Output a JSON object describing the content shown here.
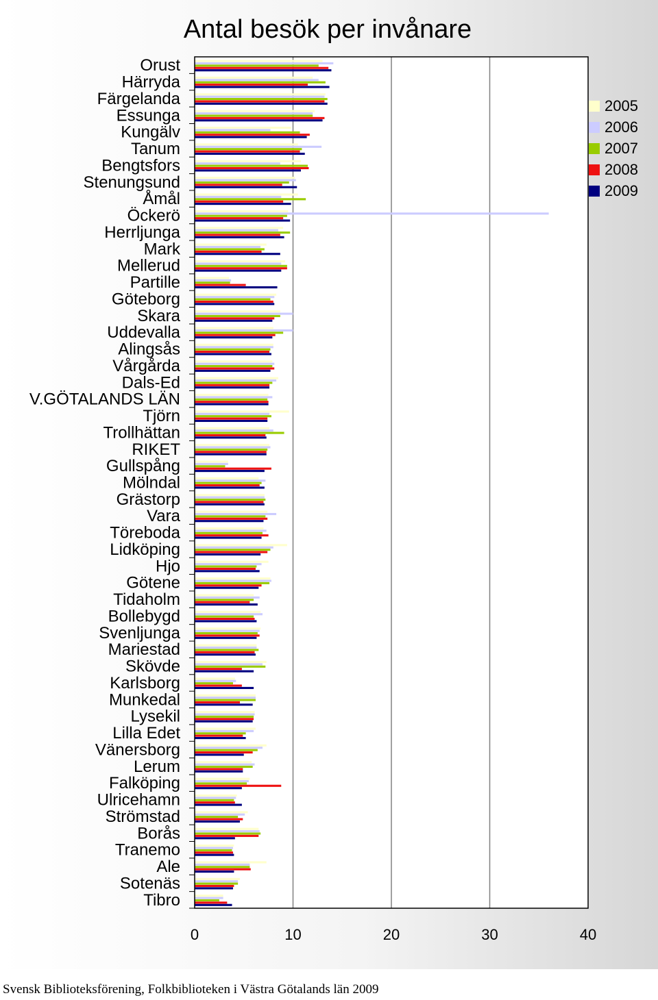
{
  "footer": "Svensk Biblioteksförening, Folkbiblioteken i Västra Götalands län 2009",
  "chart_data": {
    "type": "bar",
    "orientation": "horizontal",
    "title": "Antal besök per invånare",
    "xlim": [
      0,
      40
    ],
    "x_ticks": [
      "0",
      "10",
      "20",
      "30",
      "40"
    ],
    "grid": "vertical",
    "legend_position": "right",
    "categories": [
      "Orust",
      "Härryda",
      "Färgelanda",
      "Essunga",
      "Kungälv",
      "Tanum",
      "Bengtsfors",
      "Stenungsund",
      "Åmål",
      "Öckerö",
      "Herrljunga",
      "Mark",
      "Mellerud",
      "Partille",
      "Göteborg",
      "Skara",
      "Uddevalla",
      "Alingsås",
      "Vårgårda",
      "Dals-Ed",
      "V.GÖTALANDS LÄN",
      "Tjörn",
      "Trollhättan",
      "RIKET",
      "Gullspång",
      "Mölndal",
      "Grästorp",
      "Vara",
      "Töreboda",
      "Lidköping",
      "Hjo",
      "Götene",
      "Tidaholm",
      "Bollebygd",
      "Svenljunga",
      "Mariestad",
      "Skövde",
      "Karlsborg",
      "Munkedal",
      "Lysekil",
      "Lilla Edet",
      "Vänersborg",
      "Lerum",
      "Falköping",
      "Ulricehamn",
      "Strömstad",
      "Borås",
      "Tranemo",
      "Ale",
      "Sotenäs",
      "Tibro"
    ],
    "series": [
      {
        "name": "2005",
        "color": "#ffffcc",
        "values": [
          13.0,
          12.0,
          13.3,
          12.2,
          9.8,
          10.5,
          10.8,
          10.2,
          10.5,
          9.5,
          9.0,
          7.3,
          9.2,
          3.5,
          8.3,
          8.7,
          8.0,
          8.0,
          7.9,
          8.5,
          7.5,
          9.6,
          7.6,
          7.6,
          3.4,
          6.5,
          7.1,
          7.4,
          7.0,
          9.4,
          7.5,
          7.7,
          6.0,
          6.7,
          6.7,
          6.3,
          7.3,
          4.1,
          6.2,
          6.1,
          6.2,
          7.3,
          5.8,
          5.6,
          4.3,
          5.4,
          6.5,
          4.0,
          7.3,
          4.6,
          2.9
        ]
      },
      {
        "name": "2006",
        "color": "#ccccff",
        "values": [
          14.1,
          12.6,
          13.2,
          12.0,
          7.7,
          12.9,
          8.7,
          10.3,
          8.8,
          36.0,
          8.5,
          6.7,
          8.8,
          3.7,
          8.1,
          10.0,
          10.0,
          8.0,
          8.1,
          8.3,
          7.9,
          7.6,
          8.0,
          7.7,
          3.4,
          7.2,
          7.1,
          8.3,
          7.3,
          8.0,
          6.8,
          7.8,
          6.6,
          6.9,
          6.6,
          6.3,
          6.9,
          4.2,
          6.2,
          6.1,
          6.0,
          6.9,
          6.1,
          5.5,
          4.2,
          5.1,
          6.6,
          3.9,
          5.6,
          4.4,
          2.9
        ]
      },
      {
        "name": "2007",
        "color": "#99cc00",
        "values": [
          12.6,
          13.3,
          13.5,
          12.0,
          10.7,
          10.9,
          11.5,
          9.6,
          11.3,
          9.4,
          9.7,
          7.1,
          9.4,
          3.6,
          7.7,
          8.7,
          9.0,
          7.7,
          7.9,
          7.9,
          7.4,
          7.8,
          9.1,
          7.4,
          3.1,
          6.8,
          7.2,
          7.2,
          6.9,
          7.7,
          6.3,
          7.6,
          6.0,
          6.0,
          6.4,
          6.5,
          7.2,
          3.9,
          6.2,
          6.0,
          5.2,
          6.4,
          5.9,
          5.3,
          4.0,
          4.4,
          6.7,
          3.8,
          5.6,
          4.4,
          2.5
        ]
      },
      {
        "name": "2008",
        "color": "#ee1111",
        "values": [
          13.6,
          11.5,
          13.2,
          13.2,
          11.7,
          10.7,
          11.6,
          8.9,
          9.0,
          9.0,
          8.7,
          6.8,
          9.4,
          5.2,
          8.0,
          8.1,
          8.2,
          7.6,
          8.1,
          7.6,
          7.5,
          7.4,
          7.2,
          7.3,
          7.8,
          6.6,
          7.0,
          7.4,
          7.5,
          7.4,
          6.2,
          6.8,
          5.6,
          6.1,
          6.6,
          6.1,
          4.8,
          4.8,
          4.6,
          6.0,
          4.9,
          5.9,
          4.9,
          8.8,
          4.1,
          4.9,
          6.5,
          3.9,
          5.7,
          4.0,
          3.3
        ]
      },
      {
        "name": "2009",
        "color": "#000080",
        "values": [
          13.9,
          13.7,
          13.5,
          13.0,
          11.4,
          11.2,
          10.8,
          10.4,
          9.8,
          9.7,
          9.1,
          8.7,
          8.8,
          8.4,
          8.1,
          7.9,
          7.9,
          7.8,
          7.7,
          7.6,
          7.5,
          7.4,
          7.3,
          7.3,
          7.1,
          7.1,
          7.1,
          7.0,
          6.8,
          6.7,
          6.6,
          6.5,
          6.4,
          6.3,
          6.3,
          6.2,
          6.0,
          6.0,
          5.9,
          5.9,
          5.2,
          5.0,
          4.9,
          4.8,
          4.8,
          4.6,
          4.1,
          4.0,
          4.0,
          3.9,
          3.8
        ]
      }
    ]
  }
}
